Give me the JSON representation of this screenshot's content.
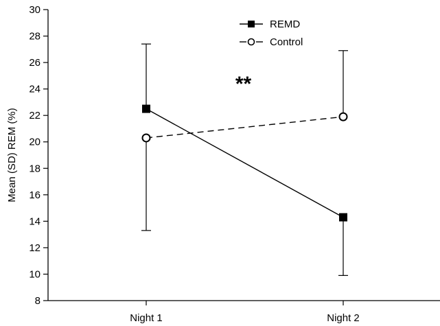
{
  "chart_data": {
    "type": "line",
    "categories": [
      "Night 1",
      "Night 2"
    ],
    "ylabel": "Mean (SD) REM (%)",
    "ylim": [
      8,
      30
    ],
    "yticks": [
      8,
      10,
      12,
      14,
      16,
      18,
      20,
      22,
      24,
      26,
      28,
      30
    ],
    "grid": false,
    "legend_position": "top-center",
    "series": [
      {
        "name": "REMD",
        "marker": "filled-square",
        "line_style": "solid",
        "values": [
          22.5,
          14.3
        ],
        "error_bars": [
          {
            "category": "Night 1",
            "direction": "up",
            "value": 27.4
          },
          {
            "category": "Night 2",
            "direction": "down",
            "value": 9.9
          }
        ]
      },
      {
        "name": "Control",
        "marker": "open-circle",
        "line_style": "dashed",
        "values": [
          20.3,
          21.9
        ],
        "error_bars": [
          {
            "category": "Night 1",
            "direction": "down",
            "value": 13.3
          },
          {
            "category": "Night 2",
            "direction": "up",
            "value": 26.9
          }
        ]
      }
    ],
    "annotations": [
      {
        "text": "**",
        "between": [
          "Night 1",
          "Night 2"
        ],
        "y": 24.5
      }
    ],
    "colors": {
      "ink": "#000000",
      "background": "#ffffff",
      "control_marker_fill": "#ffffff"
    }
  }
}
